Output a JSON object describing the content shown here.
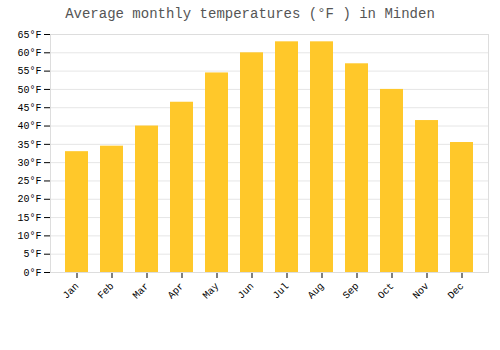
{
  "chart_data": {
    "type": "bar",
    "title": "Average monthly temperatures (°F ) in Minden",
    "categories": [
      "Jan",
      "Feb",
      "Mar",
      "Apr",
      "May",
      "Jun",
      "Jul",
      "Aug",
      "Sep",
      "Oct",
      "Nov",
      "Dec"
    ],
    "values": [
      33,
      34.5,
      40,
      46.5,
      54.5,
      60,
      63,
      63,
      57,
      50,
      41.5,
      35.5
    ],
    "color": "#FFC82A",
    "ylim": [
      0,
      65
    ],
    "yticks": [
      {
        "value": 0,
        "label": "0°F"
      },
      {
        "value": 5,
        "label": "5°F"
      },
      {
        "value": 10,
        "label": "10°F"
      },
      {
        "value": 15,
        "label": "15°F"
      },
      {
        "value": 20,
        "label": "20°F"
      },
      {
        "value": 25,
        "label": "25°F"
      },
      {
        "value": 30,
        "label": "30°F"
      },
      {
        "value": 35,
        "label": "35°F"
      },
      {
        "value": 40,
        "label": "40°F"
      },
      {
        "value": 45,
        "label": "45°F"
      },
      {
        "value": 50,
        "label": "50°F"
      },
      {
        "value": 55,
        "label": "55°F"
      },
      {
        "value": 60,
        "label": "60°F"
      },
      {
        "value": 65,
        "label": "65°F"
      }
    ],
    "grid": true
  }
}
